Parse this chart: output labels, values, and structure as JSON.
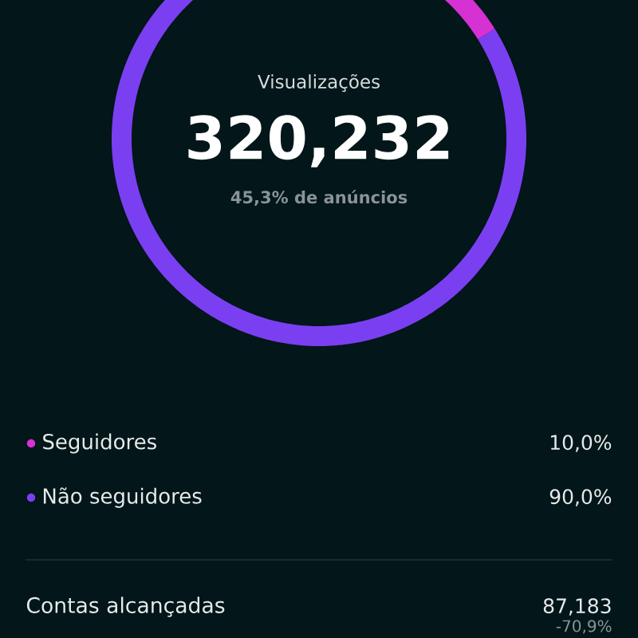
{
  "chart_data": {
    "type": "donut",
    "title": "Visualizações",
    "categories": [
      "Seguidores",
      "Não seguidores"
    ],
    "values": [
      10,
      90
    ],
    "colors": [
      "#d631d3",
      "#7b3ff2"
    ],
    "value_labels": [
      "10,0%",
      "90,0%"
    ],
    "legend": "bottom",
    "annotations": [
      "320,232",
      "45,3% de anúncios",
      "Contas alcançadas",
      "87,183",
      "-70,9%"
    ]
  }
}
